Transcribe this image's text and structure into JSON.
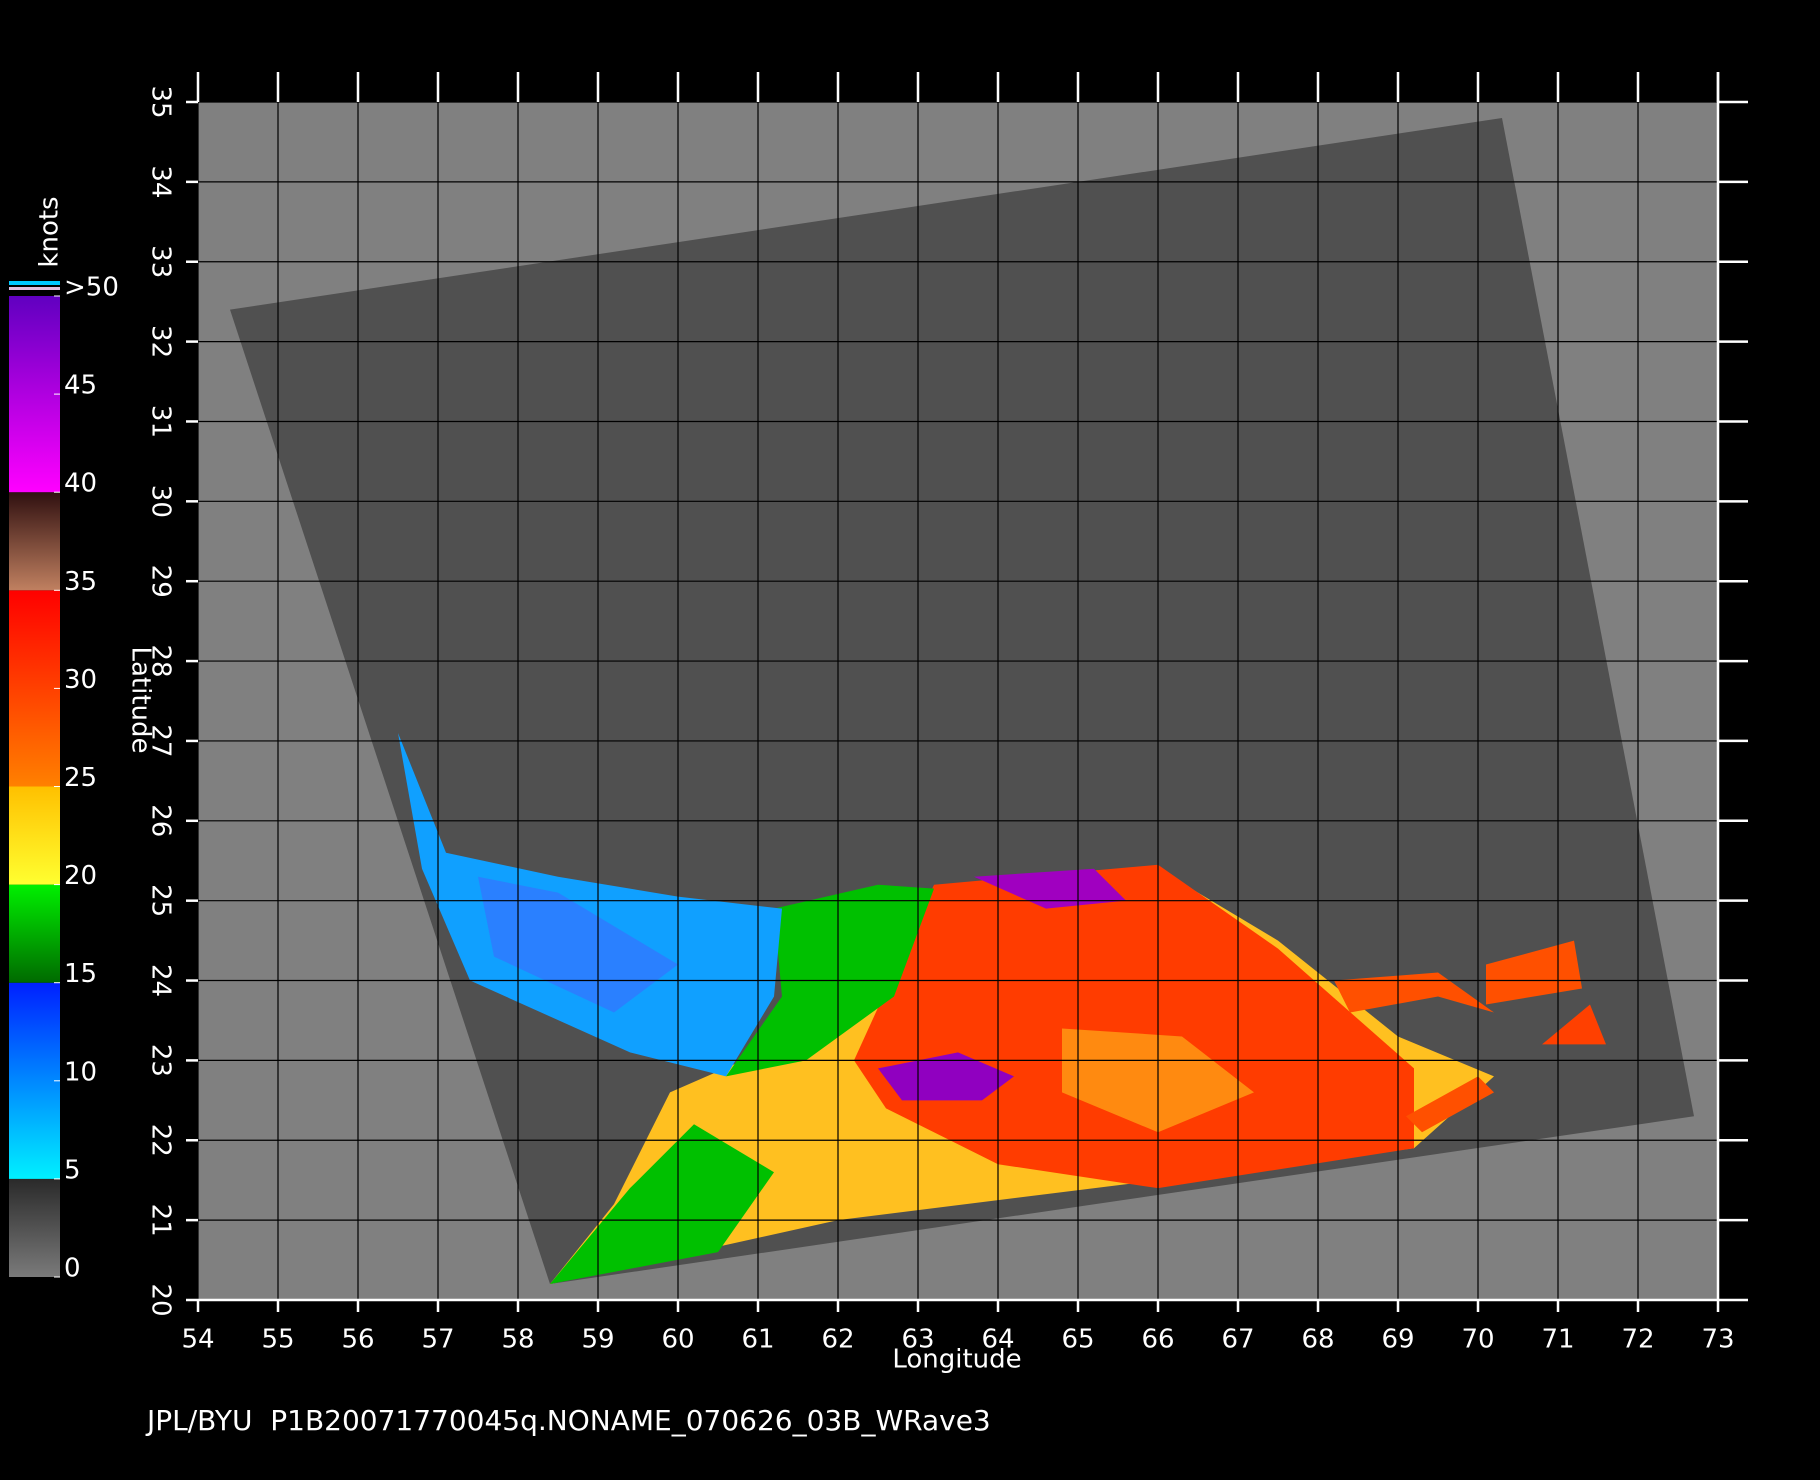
{
  "map": {
    "xlim": [
      54,
      73
    ],
    "ylim": [
      20,
      35
    ],
    "xticks": [
      54,
      55,
      56,
      57,
      58,
      59,
      60,
      61,
      62,
      63,
      64,
      65,
      66,
      67,
      68,
      69,
      70,
      71,
      72,
      73
    ],
    "yticks": [
      20,
      21,
      22,
      23,
      24,
      25,
      26,
      27,
      28,
      29,
      30,
      31,
      32,
      33,
      34,
      35
    ],
    "x_label": "Longitude",
    "y_label": "Latitude",
    "grid": true,
    "footer": "JPL/BYU  P1B20071770045q.NONAME_070626_03B_WRave3",
    "colorbar": {
      "label": "knots",
      "lim": [
        0,
        50
      ],
      "ticks": [
        0,
        5,
        10,
        15,
        20,
        25,
        30,
        35,
        40,
        45,
        {
          "value": 50,
          "label": ">50"
        }
      ],
      "bands": [
        {
          "from": 0,
          "to": 5,
          "colors": [
            "#7a7a7a",
            "#2a2a2a"
          ]
        },
        {
          "from": 5,
          "to": 15,
          "colors": [
            "#00f0ff",
            "#0020ff"
          ]
        },
        {
          "from": 15,
          "to": 20,
          "colors": [
            "#006a00",
            "#00f000"
          ]
        },
        {
          "from": 20,
          "to": 25,
          "colors": [
            "#ffff30",
            "#ffc000"
          ]
        },
        {
          "from": 25,
          "to": 35,
          "colors": [
            "#ff8000",
            "#ff0000"
          ]
        },
        {
          "from": 35,
          "to": 40,
          "colors": [
            "#c08060",
            "#301010"
          ]
        },
        {
          "from": 40,
          "to": 50,
          "colors": [
            "#ff00ff",
            "#6000c0"
          ]
        }
      ]
    }
  }
}
